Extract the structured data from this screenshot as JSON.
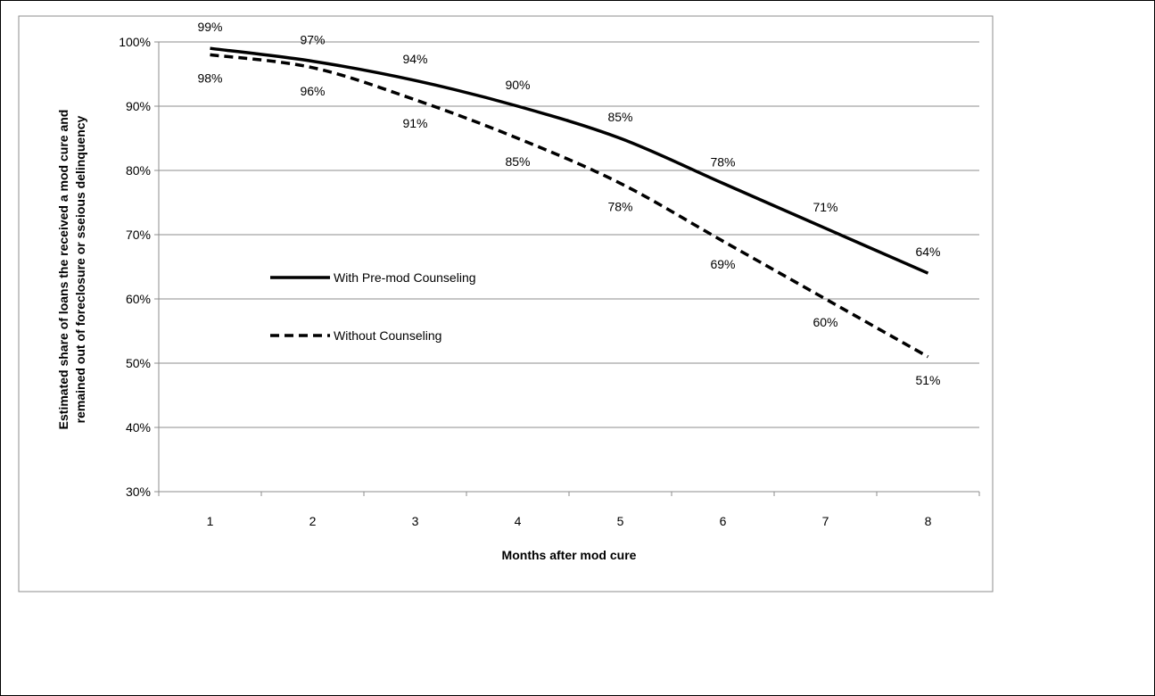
{
  "chart_data": {
    "type": "line",
    "xlabel": "Months after mod cure",
    "ylabel_lines": [
      "Estimated share of loans the received a mod cure and",
      "remained out of foreclosure or sseious delinquency"
    ],
    "categories": [
      "1",
      "2",
      "3",
      "4",
      "5",
      "6",
      "7",
      "8"
    ],
    "ylim": [
      30,
      100
    ],
    "yticks": [
      "30%",
      "40%",
      "50%",
      "60%",
      "70%",
      "80%",
      "90%",
      "100%"
    ],
    "grid": true,
    "legend_position": "center-left",
    "series": [
      {
        "name": "With Pre-mod Counseling",
        "style": "solid",
        "color": "#000000",
        "values": [
          99,
          97,
          94,
          90,
          85,
          78,
          71,
          64
        ],
        "labels": [
          "99%",
          "97%",
          "94%",
          "90%",
          "85%",
          "78%",
          "71%",
          "64%"
        ],
        "label_side": "above"
      },
      {
        "name": "Without Counseling",
        "style": "dashed",
        "color": "#000000",
        "values": [
          98,
          96,
          91,
          85,
          78,
          69,
          60,
          51
        ],
        "labels": [
          "98%",
          "96%",
          "91%",
          "85%",
          "78%",
          "69%",
          "60%",
          "51%"
        ],
        "label_side": "below"
      }
    ]
  }
}
